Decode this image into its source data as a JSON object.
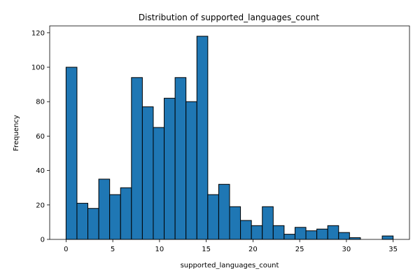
{
  "chart_data": {
    "type": "bar",
    "histogram": true,
    "title": "Distribution of supported_languages_count",
    "xlabel": "supported_languages_count",
    "ylabel": "Frequency",
    "bin_edges": [
      0,
      1.1667,
      2.3333,
      3.5,
      4.6667,
      5.8333,
      7,
      8.1667,
      9.3333,
      10.5,
      11.6667,
      12.8333,
      14,
      15.1667,
      16.3333,
      17.5,
      18.6667,
      19.8333,
      21,
      22.1667,
      23.3333,
      24.5,
      25.6667,
      26.8333,
      28,
      29.1667,
      30.3333,
      31.5,
      32.6667,
      33.8333,
      35
    ],
    "values": [
      100,
      21,
      18,
      35,
      26,
      30,
      94,
      77,
      65,
      82,
      94,
      80,
      118,
      26,
      32,
      19,
      11,
      8,
      19,
      8,
      3,
      7,
      5,
      6,
      8,
      4,
      1,
      0,
      0,
      2
    ],
    "xlim": [
      -1.75,
      36.75
    ],
    "ylim": [
      0,
      124
    ],
    "x_ticks": [
      0,
      5,
      10,
      15,
      20,
      25,
      30,
      35
    ],
    "x_tick_labels": [
      "0",
      "5",
      "10",
      "15",
      "20",
      "25",
      "30",
      "35"
    ],
    "y_ticks": [
      0,
      20,
      40,
      60,
      80,
      100,
      120
    ],
    "y_tick_labels": [
      "0",
      "20",
      "40",
      "60",
      "80",
      "100",
      "120"
    ],
    "bar_color": "#1f77b4",
    "edge_color": "#000000",
    "grid": false,
    "legend": "none"
  }
}
